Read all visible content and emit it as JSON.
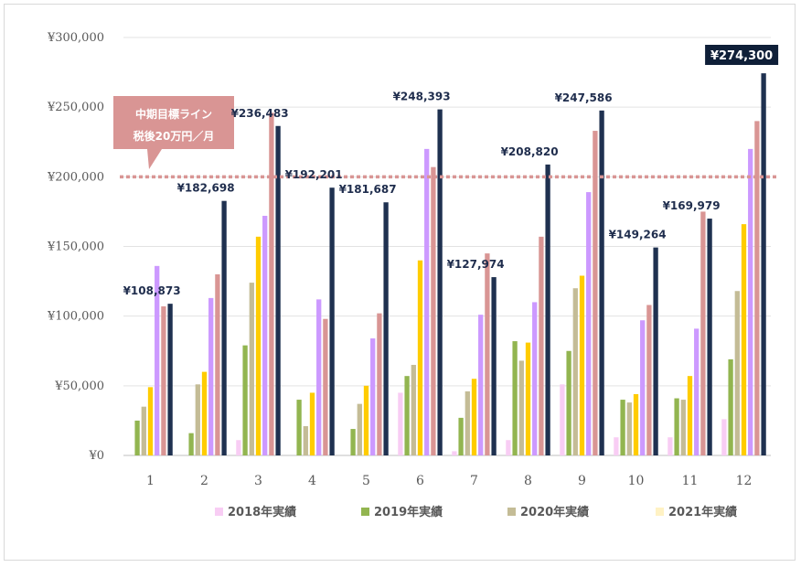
{
  "chart_data": {
    "type": "bar",
    "title": "",
    "xlabel": "",
    "ylabel": "",
    "categories": [
      "1",
      "2",
      "3",
      "4",
      "5",
      "6",
      "7",
      "8",
      "9",
      "10",
      "11",
      "12"
    ],
    "ylim": [
      0,
      300000
    ],
    "y_ticks": [
      0,
      50000,
      100000,
      150000,
      200000,
      250000,
      300000
    ],
    "y_tick_labels": [
      "¥0",
      "¥50,000",
      "¥100,000",
      "¥150,000",
      "¥200,000",
      "¥250,000",
      "¥300,000"
    ],
    "grid": true,
    "legend_position": "bottom",
    "series": [
      {
        "name": "2018年実績",
        "color": "#f8cdf4",
        "show_legend": true,
        "values": [
          null,
          null,
          11000,
          null,
          null,
          45000,
          3000,
          11000,
          51000,
          13000,
          13000,
          26000
        ]
      },
      {
        "name": "2019年実績",
        "color": "#92b550",
        "show_legend": true,
        "values": [
          25000,
          16000,
          79000,
          40000,
          19000,
          57000,
          27000,
          82000,
          75000,
          40000,
          41000,
          69000
        ]
      },
      {
        "name": "2020年実績",
        "color": "#c4bc96",
        "show_legend": true,
        "values": [
          35000,
          51000,
          124000,
          21000,
          37000,
          65000,
          46000,
          68000,
          120000,
          38000,
          40000,
          118000
        ]
      },
      {
        "name": "2021年実績",
        "color": "#ffcc00",
        "legend_color": "#fff2c4",
        "show_legend": true,
        "values": [
          49000,
          60000,
          157000,
          45000,
          50000,
          140000,
          55000,
          81000,
          129000,
          44000,
          57000,
          166000
        ]
      },
      {
        "name": "",
        "color": "#cc99ff",
        "show_legend": false,
        "values": [
          136000,
          113000,
          172000,
          112000,
          84000,
          220000,
          101000,
          110000,
          189000,
          97000,
          91000,
          220000
        ]
      },
      {
        "name": "",
        "color": "#d99594",
        "show_legend": false,
        "values": [
          107000,
          130000,
          246000,
          98000,
          102000,
          207000,
          145000,
          157000,
          233000,
          108000,
          175000,
          240000
        ]
      },
      {
        "name": "",
        "color": "#1f3150",
        "show_legend": false,
        "values": [
          108873,
          182698,
          236483,
          192201,
          181687,
          248393,
          127974,
          208820,
          247586,
          149264,
          169979,
          274300
        ]
      }
    ],
    "data_labels": [
      "¥108,873",
      "¥182,698",
      "¥236,483",
      "¥192,201",
      "¥181,687",
      "¥248,393",
      "¥127,974",
      "¥208,820",
      "¥247,586",
      "¥149,264",
      "¥169,979",
      "¥274,300"
    ],
    "target_line": {
      "value": 200000,
      "color": "#d99594"
    },
    "callout": {
      "line1": "中期目標ライン",
      "line2": "税後20万円／月",
      "color": "#d99594"
    }
  }
}
